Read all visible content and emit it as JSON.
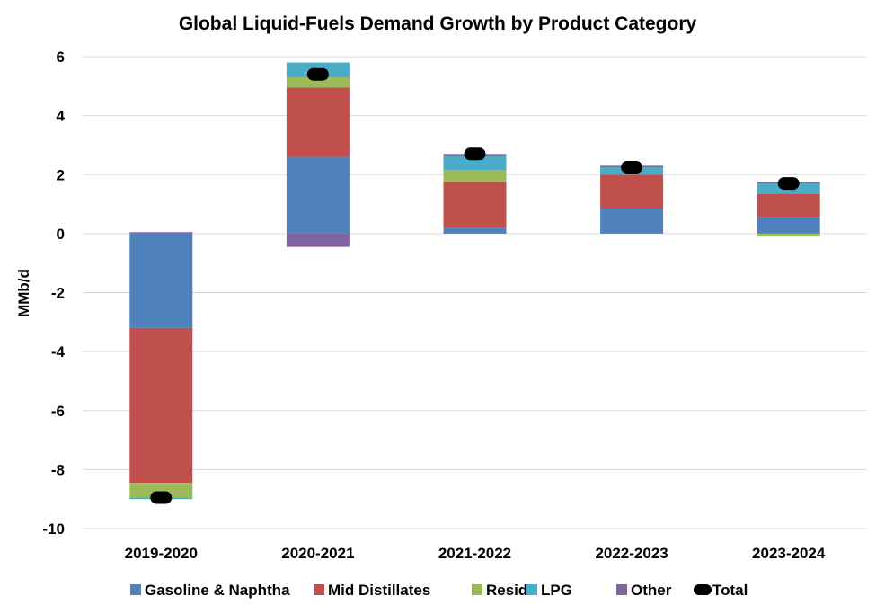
{
  "chart_data": {
    "type": "bar",
    "stacked": true,
    "title": "Global Liquid-Fuels Demand Growth by Product Category",
    "xlabel": "",
    "ylabel": "MMb/d",
    "ylim": [
      -10,
      6
    ],
    "yticks": [
      6,
      4,
      2,
      0,
      -2,
      -4,
      -6,
      -8,
      -10
    ],
    "grid": true,
    "legend_position": "bottom",
    "categories": [
      "2019-2020",
      "2020-2021",
      "2021-2022",
      "2022-2023",
      "2023-2024"
    ],
    "series": [
      {
        "name": "Gasoline & Naphtha",
        "color": "#4f81bd",
        "values": [
          -3.2,
          2.6,
          0.2,
          0.85,
          0.55
        ]
      },
      {
        "name": "Mid Distillates",
        "color": "#c0504d",
        "values": [
          -5.25,
          2.35,
          1.55,
          1.15,
          0.8
        ]
      },
      {
        "name": "Resid",
        "color": "#9bbb59",
        "values": [
          -0.5,
          0.35,
          0.4,
          0.0,
          -0.1
        ]
      },
      {
        "name": "LPG",
        "color": "#4bacc6",
        "values": [
          -0.05,
          0.5,
          0.5,
          0.25,
          0.35
        ]
      },
      {
        "name": "Other",
        "color": "#8064a2",
        "values": [
          0.05,
          -0.45,
          0.05,
          0.05,
          0.05
        ]
      }
    ],
    "total": {
      "name": "Total",
      "color": "#000000",
      "values": [
        -8.95,
        5.4,
        2.7,
        2.25,
        1.7
      ]
    }
  }
}
